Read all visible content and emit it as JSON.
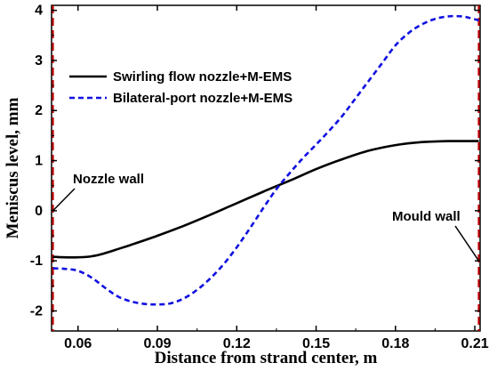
{
  "chart_data": {
    "type": "line",
    "xlabel": "Distance from strand center, m",
    "ylabel": "Meniscus level, mm",
    "xlim": [
      0.05,
      0.212
    ],
    "ylim": [
      -2.4,
      4.1
    ],
    "x_ticks": [
      0.06,
      0.09,
      0.12,
      0.15,
      0.18,
      0.21
    ],
    "x_tick_labels": [
      "0.06",
      "0.09",
      "0.12",
      "0.15",
      "0.18",
      "0.21"
    ],
    "y_ticks": [
      -2,
      -1,
      0,
      1,
      2,
      3,
      4
    ],
    "y_tick_labels": [
      "-2",
      "-1",
      "0",
      "1",
      "2",
      "3",
      "4"
    ],
    "grid": false,
    "legend_position": "top-left",
    "series": [
      {
        "name": "Swirling flow nozzle+M-EMS",
        "color": "#000000",
        "style": "solid",
        "x": [
          0.0505,
          0.055,
          0.06,
          0.065,
          0.07,
          0.08,
          0.09,
          0.1,
          0.11,
          0.12,
          0.13,
          0.14,
          0.15,
          0.16,
          0.17,
          0.18,
          0.19,
          0.2,
          0.205,
          0.2115
        ],
        "y": [
          -0.92,
          -0.93,
          -0.93,
          -0.91,
          -0.85,
          -0.68,
          -0.5,
          -0.3,
          -0.08,
          0.15,
          0.38,
          0.6,
          0.83,
          1.03,
          1.2,
          1.31,
          1.37,
          1.39,
          1.39,
          1.39
        ]
      },
      {
        "name": "Bilateral-port nozzle+M-EMS",
        "color": "#1010e0",
        "style": "dashed",
        "x": [
          0.0505,
          0.055,
          0.06,
          0.065,
          0.07,
          0.075,
          0.08,
          0.085,
          0.09,
          0.095,
          0.1,
          0.105,
          0.11,
          0.115,
          0.12,
          0.125,
          0.13,
          0.135,
          0.14,
          0.145,
          0.15,
          0.155,
          0.16,
          0.165,
          0.17,
          0.175,
          0.18,
          0.185,
          0.19,
          0.195,
          0.2,
          0.205,
          0.208,
          0.2115
        ],
        "y": [
          -1.15,
          -1.16,
          -1.2,
          -1.33,
          -1.53,
          -1.71,
          -1.81,
          -1.86,
          -1.87,
          -1.85,
          -1.75,
          -1.58,
          -1.35,
          -1.07,
          -0.73,
          -0.35,
          0.05,
          0.43,
          0.75,
          1.05,
          1.32,
          1.6,
          1.9,
          2.25,
          2.6,
          2.95,
          3.3,
          3.55,
          3.72,
          3.83,
          3.88,
          3.88,
          3.85,
          3.8
        ]
      }
    ],
    "annotations": [
      {
        "text": "Nozzle wall",
        "label_x": 0.0515,
        "label_y": 0.45,
        "arrow_to_x": 0.0505,
        "arrow_to_y": 0.0
      },
      {
        "text": "Mould wall",
        "label_x": 0.185,
        "label_y": -0.25,
        "arrow_to_x": 0.2115,
        "arrow_to_y": -1.0
      }
    ],
    "reference_lines": [
      {
        "x": 0.0505,
        "color": "#c00000",
        "style": "dashed"
      },
      {
        "x": 0.2115,
        "color": "#c00000",
        "style": "dashed"
      }
    ]
  }
}
